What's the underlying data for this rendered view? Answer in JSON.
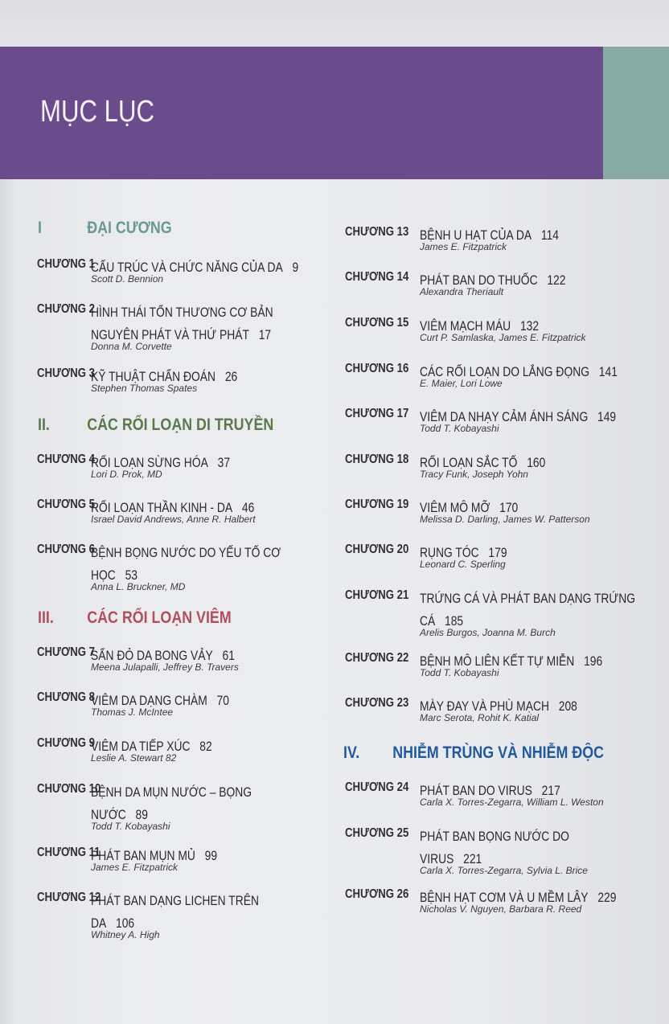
{
  "page_title": "MỤC LỤC",
  "colors": {
    "header": "#6a4b8c",
    "teal_strip": "#87aaa7",
    "section_1": "#6a9898",
    "section_2": "#5b7a4c",
    "section_3": "#b24f5c",
    "section_4": "#1f5a9c"
  },
  "sections": [
    {
      "num": "I",
      "title": "ĐẠI CƯƠNG"
    },
    {
      "num": "II.",
      "title": "CÁC RỐI LOẠN DI TRUYỀN"
    },
    {
      "num": "III.",
      "title": "CÁC RỐI LOẠN VIÊM"
    },
    {
      "num": "IV.",
      "title": "NHIỄM TRÙNG VÀ NHIỄM ĐỘC"
    }
  ],
  "chapters": [
    {
      "label": "CHƯƠNG 1",
      "title": "CẤU TRÚC VÀ CHỨC NĂNG CỦA DA",
      "page": "9",
      "author": "Scott D. Bennion"
    },
    {
      "label": "CHƯƠNG 2",
      "title": "HÌNH THÁI TỔN THƯƠNG CƠ BẢN\nNGUYÊN PHÁT VÀ THỨ PHÁT",
      "page": "17",
      "author": "Donna M. Corvette"
    },
    {
      "label": "CHƯƠNG 3",
      "title": "KỸ THUẬT CHẨN ĐOÁN",
      "page": "26",
      "author": "Stephen Thomas Spates"
    },
    {
      "label": "CHƯƠNG 4",
      "title": "RỐI LOẠN SỪNG HÓA",
      "page": "37",
      "author": "Lori D. Prok, MD"
    },
    {
      "label": "CHƯƠNG 5",
      "title": "RỐI LOẠN THẦN KINH - DA",
      "page": "46",
      "author": "Israel David Andrews, Anne R. Halbert"
    },
    {
      "label": "CHƯƠNG 6",
      "title": "BỆNH BỌNG NƯỚC DO YẾU TỐ CƠ\nHỌC",
      "page": "53",
      "author": "Anna L. Bruckner, MD"
    },
    {
      "label": "CHƯƠNG 7",
      "title": "SẨN ĐỎ DA BONG VẢY",
      "page": "61",
      "author": "Meena Julapalli, Jeffrey B. Travers"
    },
    {
      "label": "CHƯƠNG 8",
      "title": "VIÊM DA DẠNG CHÀM",
      "page": "70",
      "author": "Thomas J. McIntee"
    },
    {
      "label": "CHƯƠNG 9",
      "title": "VIÊM DA TIẾP XÚC",
      "page": "82",
      "author": "Leslie A. Stewart   82"
    },
    {
      "label": "CHƯƠNG 10",
      "title": "BỆNH DA MỤN NƯỚC – BỌNG\nNƯỚC",
      "page": "89",
      "author": "Todd T. Kobayashi"
    },
    {
      "label": "CHƯƠNG 11",
      "title": "PHÁT BAN MỤN MỦ",
      "page": "99",
      "author": "James E. Fitzpatrick"
    },
    {
      "label": "CHƯƠNG 12",
      "title": "PHÁT BAN DẠNG LICHEN TRÊN\nDA",
      "page": "106",
      "author": "Whitney A. High"
    },
    {
      "label": "CHƯƠNG 13",
      "title": "BỆNH U HẠT CỦA DA",
      "page": "114",
      "author": "James E. Fitzpatrick"
    },
    {
      "label": "CHƯƠNG 14",
      "title": "PHÁT BAN DO THUỐC",
      "page": "122",
      "author": "Alexandra Theriault"
    },
    {
      "label": "CHƯƠNG 15",
      "title": "VIÊM MẠCH MÁU",
      "page": "132",
      "author": "Curt P. Samlaska, James E. Fitzpatrick"
    },
    {
      "label": "CHƯƠNG 16",
      "title": "CÁC RỐI LOẠN DO LẮNG ĐỌNG",
      "page": "141",
      "author": "E. Maier, Lori Lowe"
    },
    {
      "label": "CHƯƠNG 17",
      "title": "VIÊM DA NHẠY CẢM ÁNH SÁNG",
      "page": "149",
      "author": "Todd T. Kobayashi"
    },
    {
      "label": "CHƯƠNG 18",
      "title": "RỐI LOẠN SẮC TỐ",
      "page": "160",
      "author": "Tracy Funk, Joseph Yohn"
    },
    {
      "label": "CHƯƠNG 19",
      "title": "VIÊM MÔ MỠ",
      "page": "170",
      "author": "Melissa D. Darling, James W. Patterson"
    },
    {
      "label": "CHƯƠNG 20",
      "title": "RỤNG TÓC",
      "page": "179",
      "author": "Leonard C. Sperling"
    },
    {
      "label": "CHƯƠNG 21",
      "title": "TRỨNG CÁ VÀ PHÁT BAN DẠNG TRỨNG\nCÁ",
      "page": "185",
      "author": "Arelis Burgos, Joanna M. Burch"
    },
    {
      "label": "CHƯƠNG 22",
      "title": "BỆNH MÔ LIÊN KẾT TỰ MIỄN",
      "page": "196",
      "author": "Todd T. Kobayashi"
    },
    {
      "label": "CHƯƠNG 23",
      "title": "MÀY ĐAY VÀ PHÙ MẠCH",
      "page": "208",
      "author": "Marc Serota, Rohit K. Katial"
    },
    {
      "label": "CHƯƠNG 24",
      "title": "PHÁT BAN DO VIRUS",
      "page": "217",
      "author": "Carla X. Torres-Zegarra, William L. Weston"
    },
    {
      "label": "CHƯƠNG 25",
      "title": "PHÁT BAN BỌNG NƯỚC DO\nVIRUS",
      "page": "221",
      "author": "Carla X. Torres-Zegarra, Sylvia L. Brice"
    },
    {
      "label": "CHƯƠNG 26",
      "title": "BỆNH HẠT CƠM VÀ U MỀM LÂY",
      "page": "229",
      "author": "Nicholas V. Nguyen, Barbara R. Reed"
    }
  ]
}
